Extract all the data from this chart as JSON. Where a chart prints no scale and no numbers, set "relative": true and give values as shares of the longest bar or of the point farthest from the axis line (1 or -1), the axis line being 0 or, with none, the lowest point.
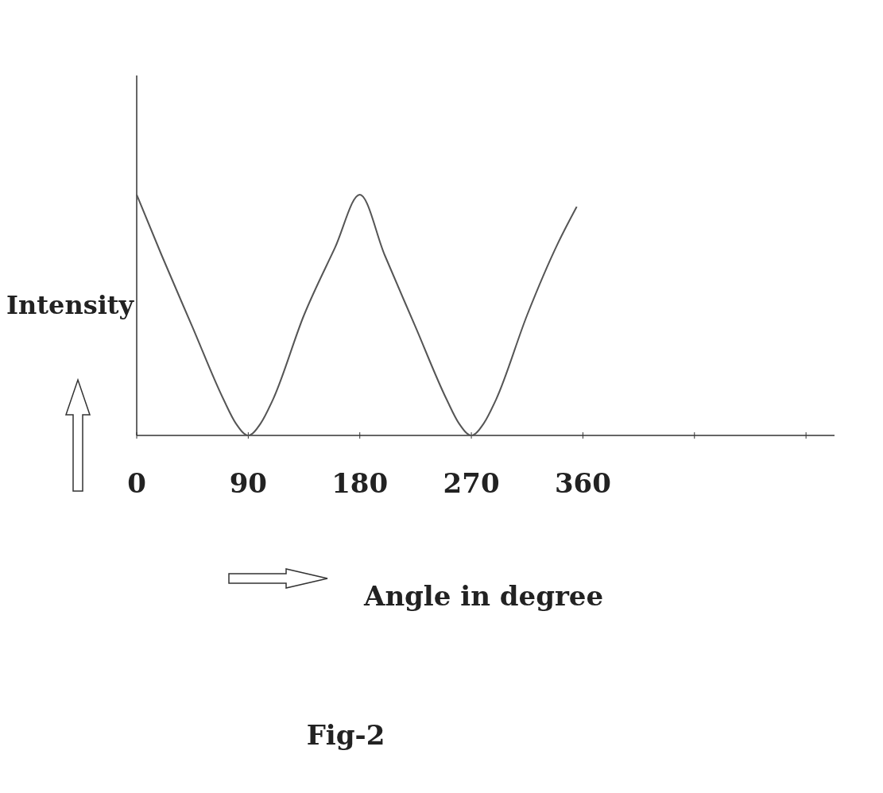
{
  "chart_data": {
    "type": "line",
    "relative": true,
    "xlabel": "Angle in degree",
    "ylabel": "Intensity",
    "annotations": [
      "Fig-2"
    ],
    "x": [
      0,
      20,
      45,
      70,
      80,
      90,
      100,
      110,
      135,
      160,
      180,
      200,
      225,
      250,
      260,
      270,
      280,
      290,
      315,
      340,
      355
    ],
    "series": [
      {
        "color": "#555555",
        "values": [
          1,
          0.75,
          0.45,
          0.15,
          0.05,
          0,
          0.05,
          0.15,
          0.5,
          0.78,
          1,
          0.75,
          0.45,
          0.15,
          0.05,
          0,
          0.05,
          0.15,
          0.5,
          0.8,
          0.95
        ]
      }
    ],
    "xlim": [
      0,
      563
    ],
    "xticks": [
      0,
      90,
      180,
      270,
      360,
      {
        "value": 450,
        "label": null
      },
      {
        "value": 540,
        "label": null
      }
    ]
  }
}
